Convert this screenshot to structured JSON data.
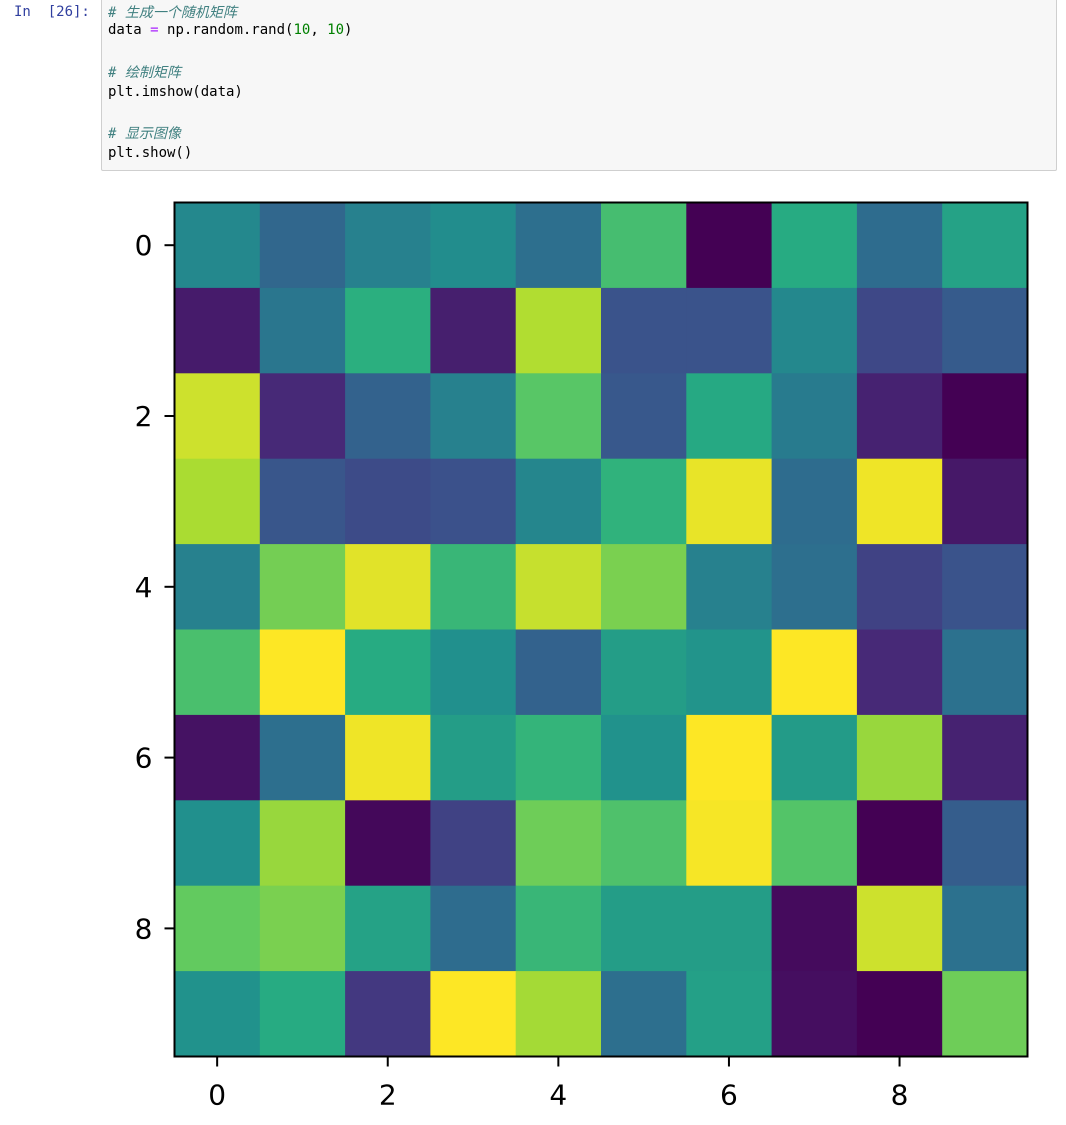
{
  "cell": {
    "prompt": "In  [26]:",
    "code_lines": [
      {
        "kind": "comment",
        "text": "# 生成一个随机矩阵"
      },
      {
        "kind": "code",
        "parts": [
          "data ",
          "=",
          " np.random.rand(",
          "10",
          ", ",
          "10",
          ")"
        ]
      },
      {
        "kind": "blank",
        "text": ""
      },
      {
        "kind": "comment",
        "text": "# 绘制矩阵"
      },
      {
        "kind": "code",
        "parts": [
          "plt.imshow(data)"
        ]
      },
      {
        "kind": "blank",
        "text": ""
      },
      {
        "kind": "comment",
        "text": "# 显示图像"
      },
      {
        "kind": "code",
        "parts": [
          "plt.show()"
        ]
      }
    ]
  },
  "chart_data": {
    "type": "heatmap",
    "colormap": "viridis",
    "rows": 10,
    "cols": 10,
    "values": [
      [
        0.47,
        0.34,
        0.44,
        0.49,
        0.37,
        0.7,
        0.0,
        0.62,
        0.36,
        0.58
      ],
      [
        0.08,
        0.4,
        0.64,
        0.09,
        0.89,
        0.26,
        0.26,
        0.47,
        0.22,
        0.29
      ],
      [
        0.93,
        0.12,
        0.32,
        0.44,
        0.74,
        0.28,
        0.61,
        0.42,
        0.1,
        0.0
      ],
      [
        0.88,
        0.27,
        0.23,
        0.25,
        0.46,
        0.65,
        0.97,
        0.36,
        0.98,
        0.07
      ],
      [
        0.44,
        0.79,
        0.96,
        0.67,
        0.92,
        0.8,
        0.44,
        0.37,
        0.2,
        0.26
      ],
      [
        0.71,
        1.0,
        0.62,
        0.5,
        0.32,
        0.56,
        0.52,
        1.0,
        0.12,
        0.38
      ],
      [
        0.05,
        0.37,
        0.98,
        0.56,
        0.66,
        0.51,
        1.0,
        0.55,
        0.85,
        0.1
      ],
      [
        0.5,
        0.85,
        0.02,
        0.2,
        0.78,
        0.72,
        0.99,
        0.73,
        0.0,
        0.3
      ],
      [
        0.76,
        0.8,
        0.58,
        0.36,
        0.67,
        0.56,
        0.56,
        0.03,
        0.93,
        0.38
      ],
      [
        0.51,
        0.62,
        0.17,
        1.0,
        0.87,
        0.37,
        0.57,
        0.04,
        0.0,
        0.78
      ]
    ],
    "x_ticks": [
      0,
      2,
      4,
      6,
      8
    ],
    "y_ticks": [
      0,
      2,
      4,
      6,
      8
    ],
    "title": "",
    "xlabel": "",
    "ylabel": "",
    "colorbar": false
  }
}
